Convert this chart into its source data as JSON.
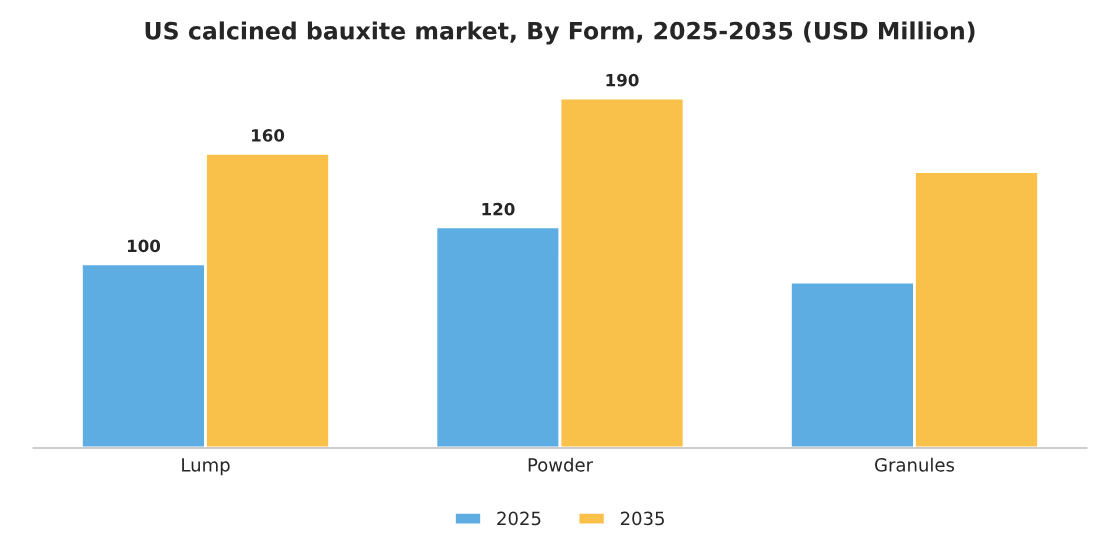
{
  "chart_data": {
    "type": "bar",
    "title": "US calcined bauxite market, By Form, 2025-2035 (USD Million)",
    "categories": [
      "Lump",
      "Powder",
      "Granules"
    ],
    "series": [
      {
        "name": "2025",
        "color": "#5dade2",
        "values": [
          100,
          120,
          90
        ],
        "value_labels": [
          "100",
          "120",
          null
        ]
      },
      {
        "name": "2035",
        "color": "#f9c04a",
        "values": [
          160,
          190,
          150
        ],
        "value_labels": [
          "160",
          "190",
          null
        ]
      }
    ],
    "legend": "bottom",
    "grid": false,
    "tick_labels": "x"
  }
}
